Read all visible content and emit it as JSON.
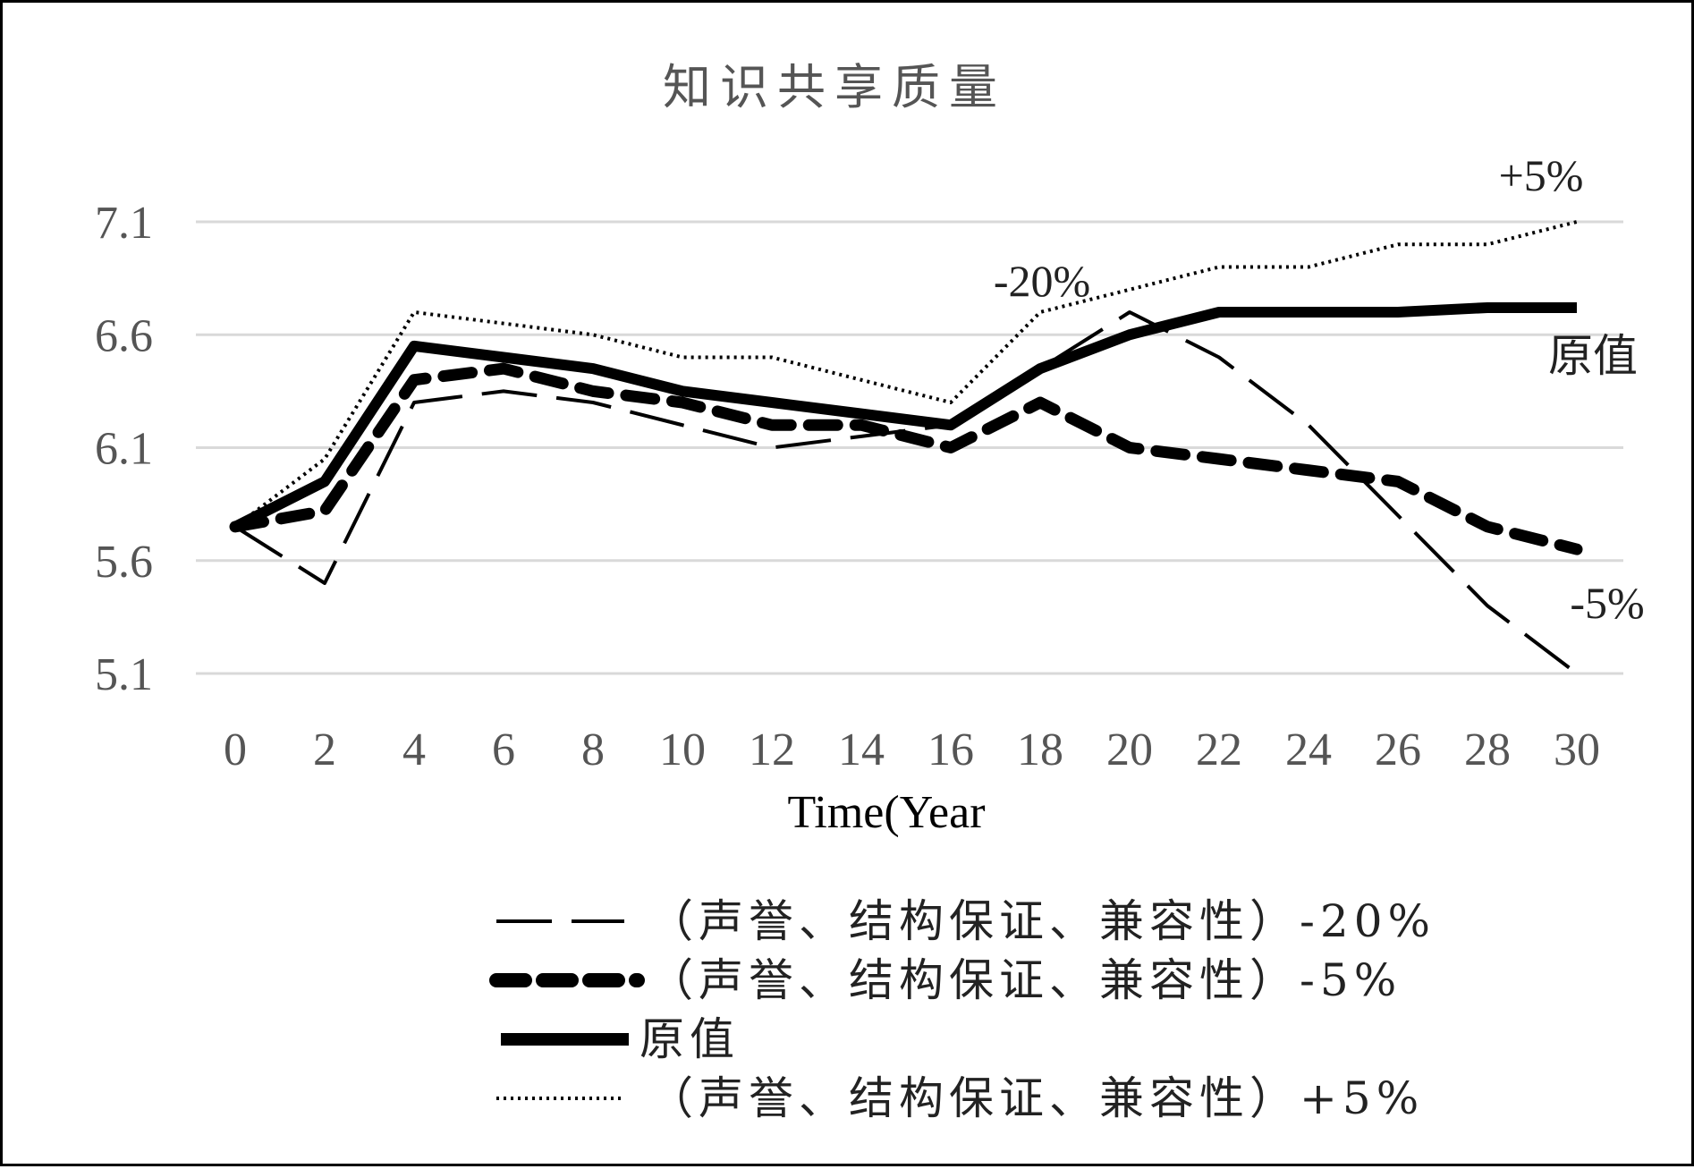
{
  "chart_data": {
    "type": "line",
    "title": "知识共享质量",
    "xlabel": "Time(Year",
    "ylabel": "",
    "x": [
      0,
      2,
      4,
      6,
      8,
      10,
      12,
      14,
      16,
      18,
      20,
      22,
      24,
      26,
      28,
      30
    ],
    "x_ticks": [
      "0",
      "2",
      "4",
      "6",
      "8",
      "10",
      "12",
      "14",
      "16",
      "18",
      "20",
      "22",
      "24",
      "26",
      "28",
      "30"
    ],
    "y_ticks": [
      "7.1",
      "6.6",
      "6.1",
      "5.6",
      "5.1"
    ],
    "y_tick_values": [
      7.1,
      6.6,
      6.1,
      5.6,
      5.1
    ],
    "ylim": [
      5.1,
      7.1
    ],
    "xlim": [
      0,
      30
    ],
    "grid": "horizontal",
    "legend_position": "bottom",
    "series": [
      {
        "name": "（声誉、结构保证、兼容性）-20%",
        "style": "long-dash",
        "values": [
          5.75,
          5.5,
          6.3,
          6.35,
          6.3,
          6.2,
          6.1,
          6.15,
          6.2,
          6.45,
          6.7,
          6.5,
          6.2,
          5.8,
          5.4,
          5.1
        ]
      },
      {
        "name": "（声誉、结构保证、兼容性）-5%",
        "style": "thick-dash",
        "values": [
          5.75,
          5.82,
          6.4,
          6.45,
          6.35,
          6.3,
          6.2,
          6.2,
          6.1,
          6.3,
          6.1,
          6.05,
          6.0,
          5.95,
          5.75,
          5.65
        ]
      },
      {
        "name": "原值",
        "style": "thick-solid",
        "values": [
          5.75,
          5.95,
          6.55,
          6.5,
          6.45,
          6.35,
          6.3,
          6.25,
          6.2,
          6.45,
          6.6,
          6.7,
          6.7,
          6.7,
          6.72,
          6.72
        ]
      },
      {
        "name": "（声誉、结构保证、兼容性）+5%",
        "style": "dotted",
        "values": [
          5.75,
          6.05,
          6.7,
          6.65,
          6.6,
          6.5,
          6.5,
          6.4,
          6.3,
          6.7,
          6.8,
          6.9,
          6.9,
          7.0,
          7.0,
          7.1
        ]
      }
    ],
    "annotations": [
      {
        "text": "+5%",
        "series": 3
      },
      {
        "text": "-20%",
        "series": 0
      },
      {
        "text": "原值",
        "series": 2
      },
      {
        "text": "-5%",
        "series": 1
      }
    ]
  }
}
